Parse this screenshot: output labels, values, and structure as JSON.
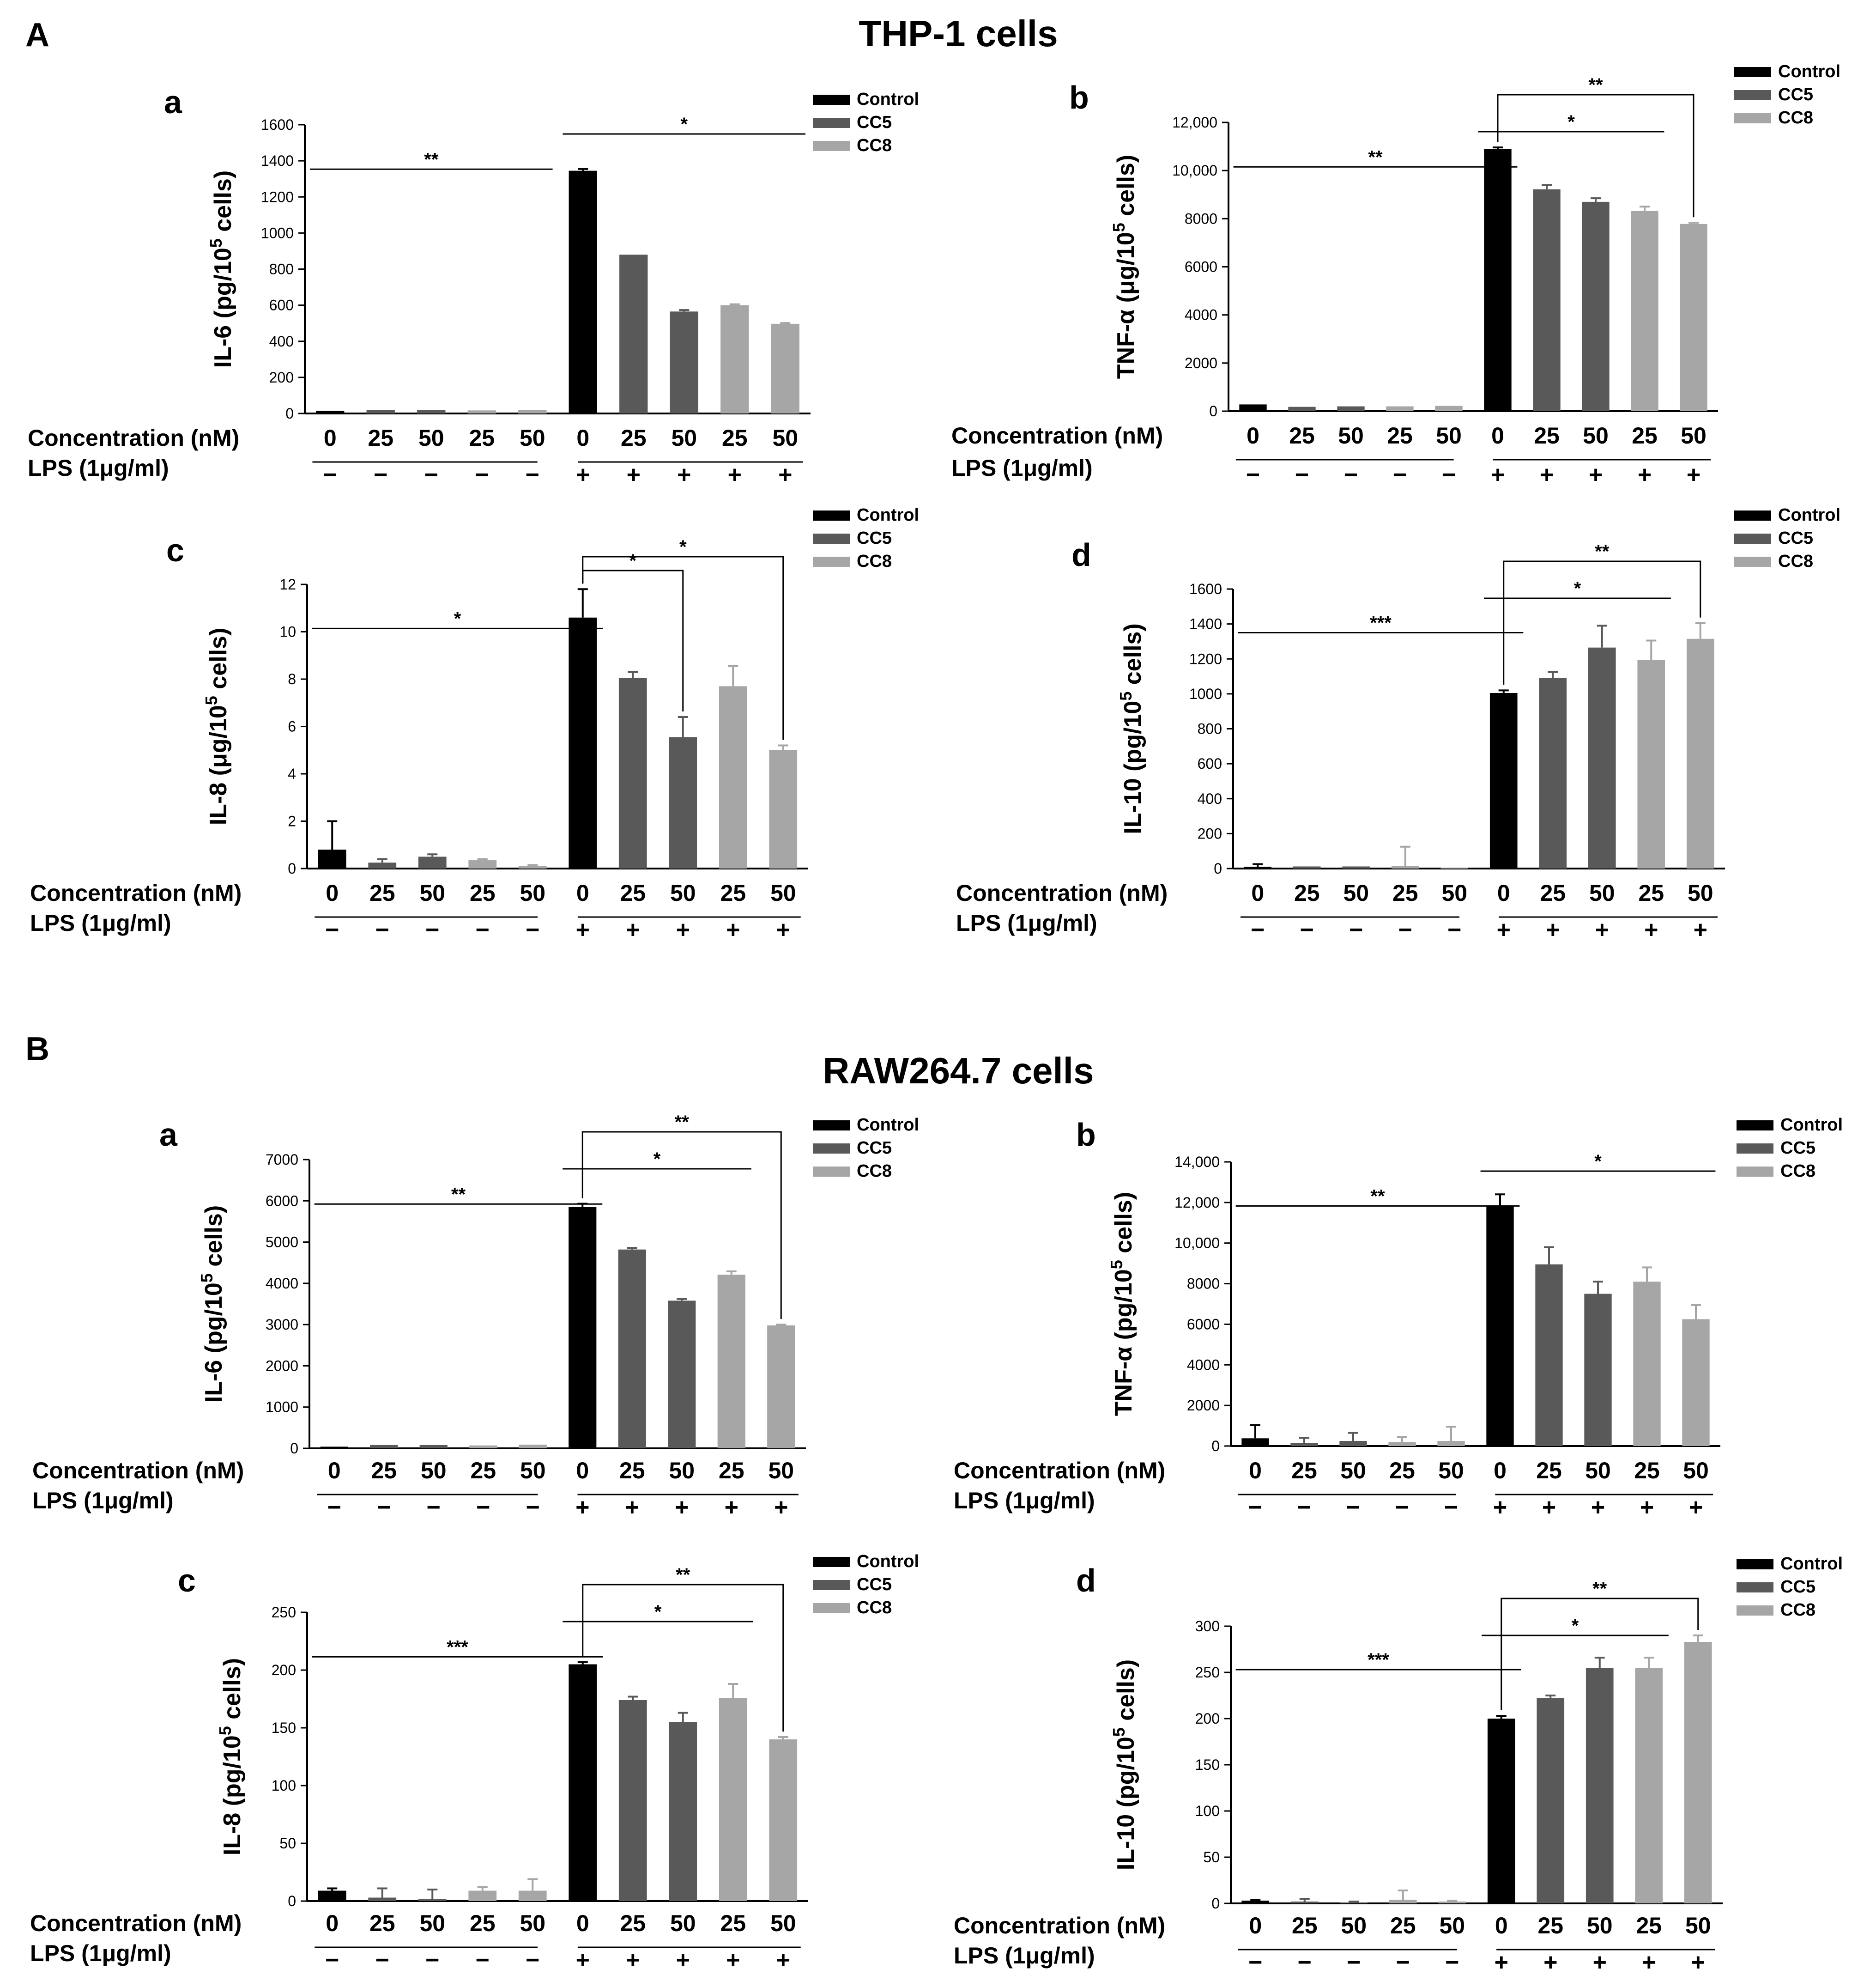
{
  "figure": {
    "sections": [
      {
        "label": "A",
        "title": "THP-1 cells"
      },
      {
        "label": "B",
        "title": "RAW264.7 cells"
      }
    ],
    "legend": [
      "Control",
      "CC5",
      "CC8"
    ],
    "x_labels": [
      "0",
      "25",
      "50",
      "25",
      "50",
      "0",
      "25",
      "50",
      "25",
      "50"
    ],
    "concentration_label": "Concentration (nM)",
    "lps_label": "LPS (1μg/ml)",
    "lps_signs": [
      "−",
      "−",
      "−",
      "−",
      "−",
      "+",
      "+",
      "+",
      "+",
      "+"
    ],
    "colors": {
      "Control": "#000000",
      "CC5": "#595959",
      "CC8": "#a6a6a6"
    }
  },
  "chart_data": [
    {
      "id": "A-a",
      "section": "A",
      "panel": "a",
      "type": "bar",
      "ylabel": "IL-6 (pg/10",
      "ylabel_sup": "5",
      "ylabel_tail": " cells)",
      "ylim": [
        0,
        1600
      ],
      "yticks": [
        "0",
        "200",
        "400",
        "600",
        "800",
        "1000",
        "1200",
        "1400",
        "1600"
      ],
      "categories": [
        "0",
        "25",
        "50",
        "25",
        "50",
        "0",
        "25",
        "50",
        "25",
        "50"
      ],
      "groups": [
        "Control",
        "CC5",
        "CC5",
        "CC8",
        "CC8",
        "Control",
        "CC5",
        "CC5",
        "CC8",
        "CC8"
      ],
      "values": [
        15,
        18,
        18,
        17,
        19,
        1345,
        880,
        565,
        600,
        497
      ],
      "errors": [
        0,
        0,
        0,
        0,
        0,
        10,
        0,
        8,
        5,
        4
      ],
      "annotations": [
        {
          "type": "line",
          "from": 0,
          "to": 4,
          "text": "**"
        },
        {
          "type": "line",
          "from": 5,
          "to": 9,
          "text": "*"
        }
      ]
    },
    {
      "id": "A-b",
      "section": "A",
      "panel": "b",
      "type": "bar",
      "ylabel": "TNF-α (μg/10",
      "ylabel_sup": "5",
      "ylabel_tail": " cells)",
      "ylim": [
        0,
        12000
      ],
      "yticks": [
        "0",
        "2000",
        "4000",
        "6000",
        "8000",
        "10,000",
        "12,000"
      ],
      "categories": [
        "0",
        "25",
        "50",
        "25",
        "50",
        "0",
        "25",
        "50",
        "25",
        "50"
      ],
      "groups": [
        "Control",
        "CC5",
        "CC5",
        "CC8",
        "CC8",
        "Control",
        "CC5",
        "CC5",
        "CC8",
        "CC8"
      ],
      "values": [
        280,
        180,
        200,
        200,
        220,
        10900,
        9220,
        8700,
        8320,
        7780
      ],
      "errors": [
        0,
        0,
        0,
        0,
        0,
        60,
        180,
        150,
        180,
        50
      ],
      "annotations": [
        {
          "type": "line",
          "from": 0,
          "to": 5,
          "text": "**"
        },
        {
          "type": "line",
          "from": 5,
          "to": 8,
          "text": "*"
        },
        {
          "type": "bracket",
          "from": 5,
          "to": 9,
          "text": "**"
        }
      ]
    },
    {
      "id": "A-c",
      "section": "A",
      "panel": "c",
      "type": "bar",
      "ylabel": "IL-8 (μg/10",
      "ylabel_sup": "5",
      "ylabel_tail": " cells)",
      "ylim": [
        0,
        12
      ],
      "yticks": [
        "0",
        "2",
        "4",
        "6",
        "8",
        "10",
        "12"
      ],
      "categories": [
        "0",
        "25",
        "50",
        "25",
        "50",
        "0",
        "25",
        "50",
        "25",
        "50"
      ],
      "groups": [
        "Control",
        "CC5",
        "CC5",
        "CC8",
        "CC8",
        "Control",
        "CC5",
        "CC5",
        "CC8",
        "CC8"
      ],
      "values": [
        0.8,
        0.25,
        0.5,
        0.35,
        0.1,
        10.6,
        8.05,
        5.55,
        7.7,
        5.0
      ],
      "errors": [
        1.2,
        0.15,
        0.1,
        0.05,
        0.05,
        1.2,
        0.25,
        0.85,
        0.85,
        0.2
      ],
      "annotations": [
        {
          "type": "line",
          "from": 0,
          "to": 5,
          "text": "*"
        },
        {
          "type": "bracket",
          "from": 5,
          "to": 7,
          "text": "*"
        },
        {
          "type": "bracket",
          "from": 5,
          "to": 9,
          "text": "*"
        }
      ]
    },
    {
      "id": "A-d",
      "section": "A",
      "panel": "d",
      "type": "bar",
      "ylabel": "IL-10 (pg/10",
      "ylabel_sup": "5",
      "ylabel_tail": " cells)",
      "ylim": [
        0,
        1600
      ],
      "yticks": [
        "0",
        "200",
        "400",
        "600",
        "800",
        "1000",
        "1200",
        "1400",
        "1600"
      ],
      "categories": [
        "0",
        "25",
        "50",
        "25",
        "50",
        "0",
        "25",
        "50",
        "25",
        "50"
      ],
      "groups": [
        "Control",
        "CC5",
        "CC5",
        "CC8",
        "CC8",
        "Control",
        "CC5",
        "CC5",
        "CC8",
        "CC8"
      ],
      "values": [
        10,
        12,
        12,
        15,
        5,
        1005,
        1090,
        1265,
        1195,
        1315
      ],
      "errors": [
        15,
        0,
        0,
        110,
        0,
        15,
        35,
        125,
        110,
        90
      ],
      "annotations": [
        {
          "type": "line",
          "from": 0,
          "to": 5,
          "text": "***"
        },
        {
          "type": "line",
          "from": 5,
          "to": 8,
          "text": "*"
        },
        {
          "type": "bracket",
          "from": 5,
          "to": 9,
          "text": "**"
        }
      ]
    },
    {
      "id": "B-a",
      "section": "B",
      "panel": "a",
      "type": "bar",
      "ylabel": "IL-6 (pg/10",
      "ylabel_sup": "5",
      "ylabel_tail": " cells)",
      "ylim": [
        0,
        7000
      ],
      "yticks": [
        "0",
        "1000",
        "2000",
        "3000",
        "4000",
        "5000",
        "6000",
        "7000"
      ],
      "categories": [
        "0",
        "25",
        "50",
        "25",
        "50",
        "0",
        "25",
        "50",
        "25",
        "50"
      ],
      "groups": [
        "Control",
        "CC5",
        "CC5",
        "CC8",
        "CC8",
        "Control",
        "CC5",
        "CC5",
        "CC8",
        "CC8"
      ],
      "values": [
        40,
        80,
        80,
        70,
        90,
        5850,
        4820,
        3580,
        4210,
        2980
      ],
      "errors": [
        0,
        0,
        0,
        0,
        0,
        80,
        40,
        40,
        80,
        20
      ],
      "annotations": [
        {
          "type": "line",
          "from": 0,
          "to": 5,
          "text": "**"
        },
        {
          "type": "line",
          "from": 5,
          "to": 8,
          "text": "*"
        },
        {
          "type": "bracket",
          "from": 5,
          "to": 9,
          "text": "**"
        }
      ]
    },
    {
      "id": "B-b",
      "section": "B",
      "panel": "b",
      "type": "bar",
      "ylabel": "TNF-α (pg/10",
      "ylabel_sup": "5",
      "ylabel_tail": " cells)",
      "ylim": [
        0,
        14000
      ],
      "yticks": [
        "0",
        "2000",
        "4000",
        "6000",
        "8000",
        "10,000",
        "12,000",
        "14,000"
      ],
      "categories": [
        "0",
        "25",
        "50",
        "25",
        "50",
        "0",
        "25",
        "50",
        "25",
        "50"
      ],
      "groups": [
        "Control",
        "CC5",
        "CC5",
        "CC8",
        "CC8",
        "Control",
        "CC5",
        "CC5",
        "CC8",
        "CC8"
      ],
      "values": [
        380,
        150,
        250,
        200,
        250,
        11850,
        8950,
        7500,
        8100,
        6250
      ],
      "errors": [
        650,
        250,
        400,
        250,
        700,
        550,
        850,
        600,
        700,
        700
      ],
      "annotations": [
        {
          "type": "line",
          "from": 0,
          "to": 5,
          "text": "**"
        },
        {
          "type": "line",
          "from": 5,
          "to": 9,
          "text": "*"
        }
      ]
    },
    {
      "id": "B-c",
      "section": "B",
      "panel": "c",
      "type": "bar",
      "ylabel": "IL-8 (pg/10",
      "ylabel_sup": "5",
      "ylabel_tail": " cells)",
      "ylim": [
        0,
        250
      ],
      "yticks": [
        "0",
        "50",
        "100",
        "150",
        "200",
        "250"
      ],
      "categories": [
        "0",
        "25",
        "50",
        "25",
        "50",
        "0",
        "25",
        "50",
        "25",
        "50"
      ],
      "groups": [
        "Control",
        "CC5",
        "CC5",
        "CC8",
        "CC8",
        "Control",
        "CC5",
        "CC5",
        "CC8",
        "CC8"
      ],
      "values": [
        9,
        3,
        2,
        9,
        9,
        205,
        174,
        155,
        176,
        140
      ],
      "errors": [
        2,
        8,
        8,
        3,
        10,
        2,
        3,
        8,
        12,
        2
      ],
      "annotations": [
        {
          "type": "line",
          "from": 0,
          "to": 5,
          "text": "***"
        },
        {
          "type": "line",
          "from": 5,
          "to": 8,
          "text": "*"
        },
        {
          "type": "bracket",
          "from": 5,
          "to": 9,
          "text": "**"
        }
      ]
    },
    {
      "id": "B-d",
      "section": "B",
      "panel": "d",
      "type": "bar",
      "ylabel": "IL-10 (pg/10",
      "ylabel_sup": "5",
      "ylabel_tail": " cells)",
      "ylim": [
        0,
        300
      ],
      "yticks": [
        "0",
        "50",
        "100",
        "150",
        "200",
        "250",
        "300"
      ],
      "categories": [
        "0",
        "25",
        "50",
        "25",
        "50",
        "0",
        "25",
        "50",
        "25",
        "50"
      ],
      "groups": [
        "Control",
        "CC5",
        "CC5",
        "CC8",
        "CC8",
        "Control",
        "CC5",
        "CC5",
        "CC8",
        "CC8"
      ],
      "values": [
        3,
        2,
        1,
        4,
        2,
        200,
        222,
        255,
        255,
        283
      ],
      "errors": [
        1,
        3,
        1,
        10,
        1,
        3,
        3,
        11,
        11,
        7
      ],
      "annotations": [
        {
          "type": "line",
          "from": 0,
          "to": 5,
          "text": "***"
        },
        {
          "type": "line",
          "from": 5,
          "to": 8,
          "text": "*"
        },
        {
          "type": "bracket",
          "from": 5,
          "to": 9,
          "text": "**"
        }
      ]
    }
  ]
}
